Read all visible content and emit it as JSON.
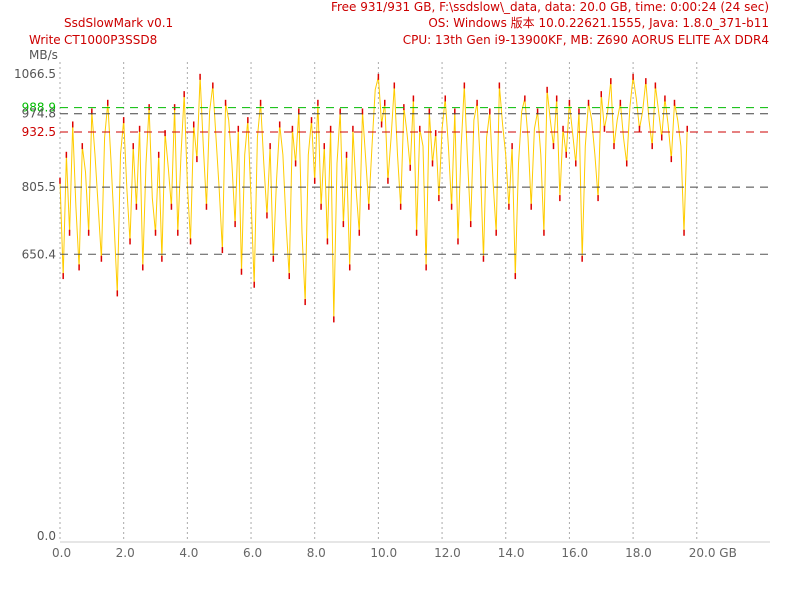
{
  "header": {
    "app_title": "SsdSlowMark v0.1",
    "mode": "Write",
    "device": "CT1000P3SSD8",
    "info_free": "Free 931/931 GB, F:\\ssdslow\\_data, data: 20.0 GB, time: 0:00:24 (24 sec)",
    "info_os": "OS: Windows 版本 10.0.22621.1555, Java: 1.8.0_371-b11",
    "info_cpu": "CPU: 13th Gen i9-13900KF, MB: Z690 AORUS ELITE AX DDR4"
  },
  "colors": {
    "trace": "#ffcc00",
    "peaks": "#dd0000",
    "ref_green": "#00bb00",
    "ref_red": "#cc0000",
    "ref_dark": "#444444",
    "ref_gray": "#888888",
    "grid": "#aaaaaa",
    "label_gray": "#555555"
  },
  "chart_data": {
    "type": "line",
    "ylabel": "MB/s",
    "x_unit_label": "GB",
    "xlim": [
      0,
      22.3
    ],
    "ylim": [
      0,
      1066.5
    ],
    "x_ticks": [
      0.0,
      2.0,
      4.0,
      6.0,
      8.0,
      10.0,
      12.0,
      14.0,
      16.0,
      18.0,
      20.0
    ],
    "x_tick_labels": [
      "0.0",
      "2.0",
      "4.0",
      "6.0",
      "8.0",
      "10.0",
      "12.0",
      "14.0",
      "16.0",
      "18.0",
      "20.0 GB"
    ],
    "y_ticks": [
      {
        "value": 1066.5,
        "label": "1066.5",
        "color": "gray"
      },
      {
        "value": 988.9,
        "label": "988.9",
        "color": "green"
      },
      {
        "value": 974.8,
        "label": "974.8",
        "color": "gray"
      },
      {
        "value": 932.5,
        "label": "932.5",
        "color": "red"
      },
      {
        "value": 805.5,
        "label": "805.5",
        "color": "gray"
      },
      {
        "value": 650.4,
        "label": "650.4",
        "color": "gray"
      },
      {
        "value": 0.0,
        "label": "0.0",
        "color": "gray"
      }
    ],
    "reference_lines": [
      {
        "value": 988.9,
        "color": "green"
      },
      {
        "value": 974.8,
        "color": "dark"
      },
      {
        "value": 932.5,
        "color": "red"
      },
      {
        "value": 805.5,
        "color": "dark"
      },
      {
        "value": 650.4,
        "color": "gray"
      }
    ],
    "series": [
      {
        "x_start": 0,
        "x_step": 0.1,
        "values": [
          820,
          600,
          880,
          700,
          950,
          760,
          620,
          900,
          840,
          700,
          980,
          880,
          760,
          640,
          920,
          1000,
          870,
          720,
          560,
          880,
          960,
          800,
          680,
          900,
          760,
          940,
          620,
          860,
          990,
          780,
          700,
          880,
          640,
          930,
          850,
          760,
          990,
          700,
          880,
          1020,
          810,
          680,
          950,
          870,
          1060,
          900,
          760,
          980,
          1040,
          920,
          800,
          660,
          1000,
          960,
          860,
          720,
          940,
          610,
          880,
          960,
          780,
          580,
          920,
          1000,
          860,
          740,
          900,
          640,
          820,
          950,
          880,
          720,
          600,
          940,
          860,
          980,
          700,
          540,
          880,
          960,
          820,
          1000,
          760,
          900,
          680,
          940,
          500,
          860,
          980,
          720,
          880,
          620,
          940,
          800,
          700,
          980,
          870,
          760,
          900,
          1030,
          1060,
          950,
          1000,
          820,
          920,
          1040,
          880,
          760,
          990,
          930,
          850,
          1010,
          700,
          940,
          900,
          620,
          980,
          860,
          930,
          780,
          940,
          1010,
          900,
          760,
          980,
          680,
          900,
          1040,
          870,
          720,
          960,
          1000,
          860,
          640,
          920,
          980,
          820,
          700,
          1040,
          950,
          880,
          760,
          900,
          600,
          860,
          980,
          1010,
          920,
          760,
          940,
          980,
          880,
          700,
          1030,
          960,
          900,
          1010,
          780,
          940,
          880,
          1000,
          930,
          860,
          980,
          640,
          900,
          1000,
          960,
          880,
          780,
          1020,
          940,
          980,
          1050,
          900,
          960,
          1000,
          920,
          860,
          990,
          1060,
          1010,
          940,
          980,
          1050,
          960,
          900,
          1040,
          980,
          920,
          1010,
          950,
          870,
          1000,
          960,
          900,
          700,
          940
        ]
      }
    ]
  }
}
